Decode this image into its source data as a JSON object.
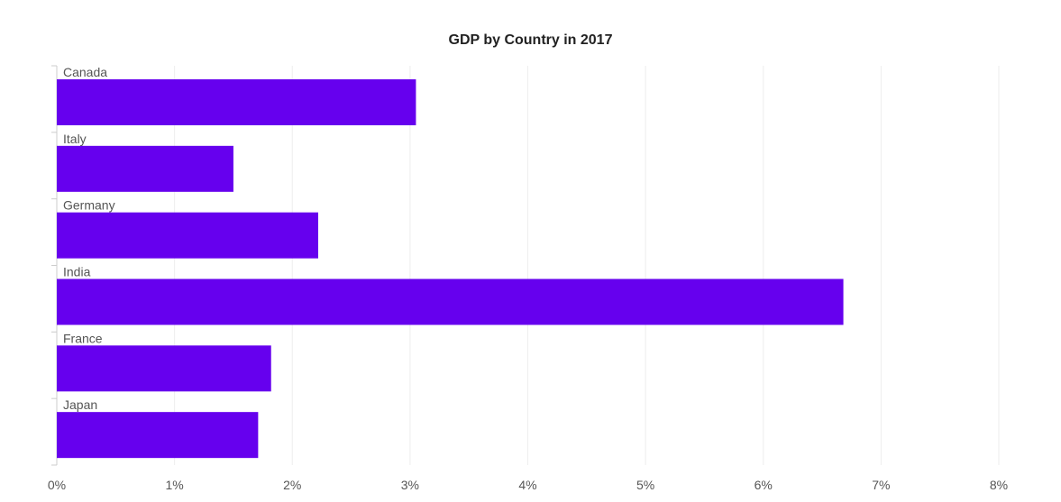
{
  "chart_data": {
    "type": "bar",
    "orientation": "horizontal",
    "title": "GDP by Country in 2017",
    "xlabel": "",
    "ylabel": "",
    "categories": [
      "Canada",
      "Italy",
      "Germany",
      "India",
      "France",
      "Japan"
    ],
    "values": [
      3.05,
      1.5,
      2.22,
      6.68,
      1.82,
      1.71
    ],
    "xlim": [
      0,
      8
    ],
    "x_ticks": [
      "0%",
      "1%",
      "2%",
      "3%",
      "4%",
      "5%",
      "6%",
      "7%",
      "8%"
    ],
    "grid": true,
    "legend": "none",
    "bar_color": "#6600ee",
    "grid_color": "#eeeeee"
  }
}
